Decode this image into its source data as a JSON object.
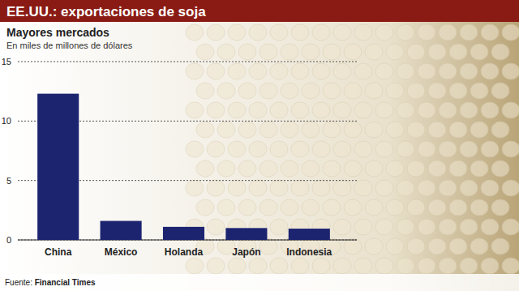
{
  "chart_data": {
    "type": "bar",
    "title": "EE.UU.: exportaciones de soja",
    "subtitle": "Mayores mercados",
    "y_label": "En miles de millones de dólares",
    "source": "Fuente: Financial Times",
    "categories": [
      "China",
      "México",
      "Holanda",
      "Japón",
      "Indonesia"
    ],
    "values": [
      12.3,
      1.6,
      1.1,
      1.0,
      0.95
    ],
    "color": "#1c2470",
    "ylim": [
      0,
      15
    ],
    "yticks": [
      0,
      5,
      10,
      15
    ],
    "grid": true
  }
}
